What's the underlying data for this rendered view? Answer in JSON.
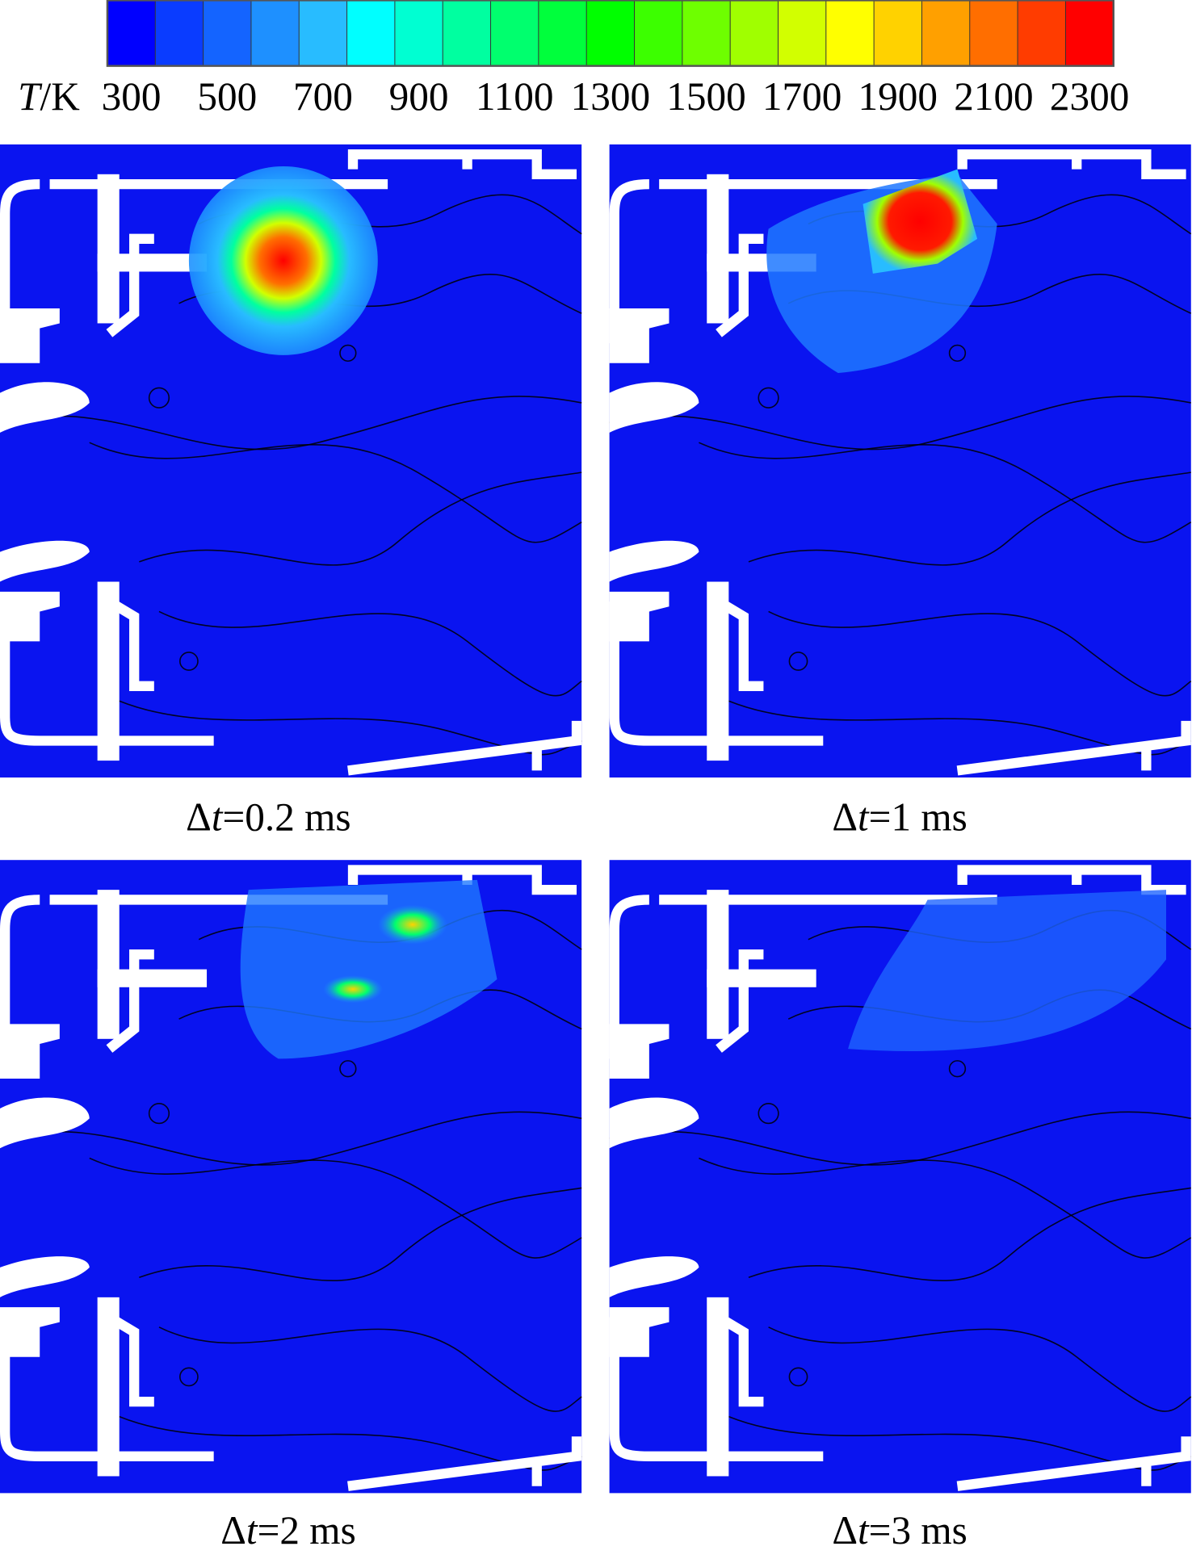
{
  "colorbar": {
    "label_var": "T",
    "label_unit": "/K",
    "range": [
      250,
      2350
    ],
    "ticks": [
      300,
      500,
      700,
      900,
      1100,
      1300,
      1500,
      1700,
      1900,
      2100,
      2300
    ],
    "colors": [
      "#0000ff",
      "#0a3cff",
      "#1464ff",
      "#1e90ff",
      "#28bcff",
      "#00ffff",
      "#00ffd2",
      "#00ffa0",
      "#00ff6e",
      "#00ff3c",
      "#00ff00",
      "#3cff00",
      "#6eff00",
      "#a0ff00",
      "#d2ff00",
      "#ffff00",
      "#ffd200",
      "#ffa000",
      "#ff6e00",
      "#ff3c00",
      "#ff0000"
    ]
  },
  "panels": [
    {
      "delta": "Δ",
      "var": "t",
      "rest": "=0.2 ms"
    },
    {
      "delta": "Δ",
      "var": "t",
      "rest": "=1 ms"
    },
    {
      "delta": "Δ",
      "var": "t",
      "rest": "=2 ms"
    },
    {
      "delta": "Δ",
      "var": "t",
      "rest": "=3 ms"
    }
  ]
}
